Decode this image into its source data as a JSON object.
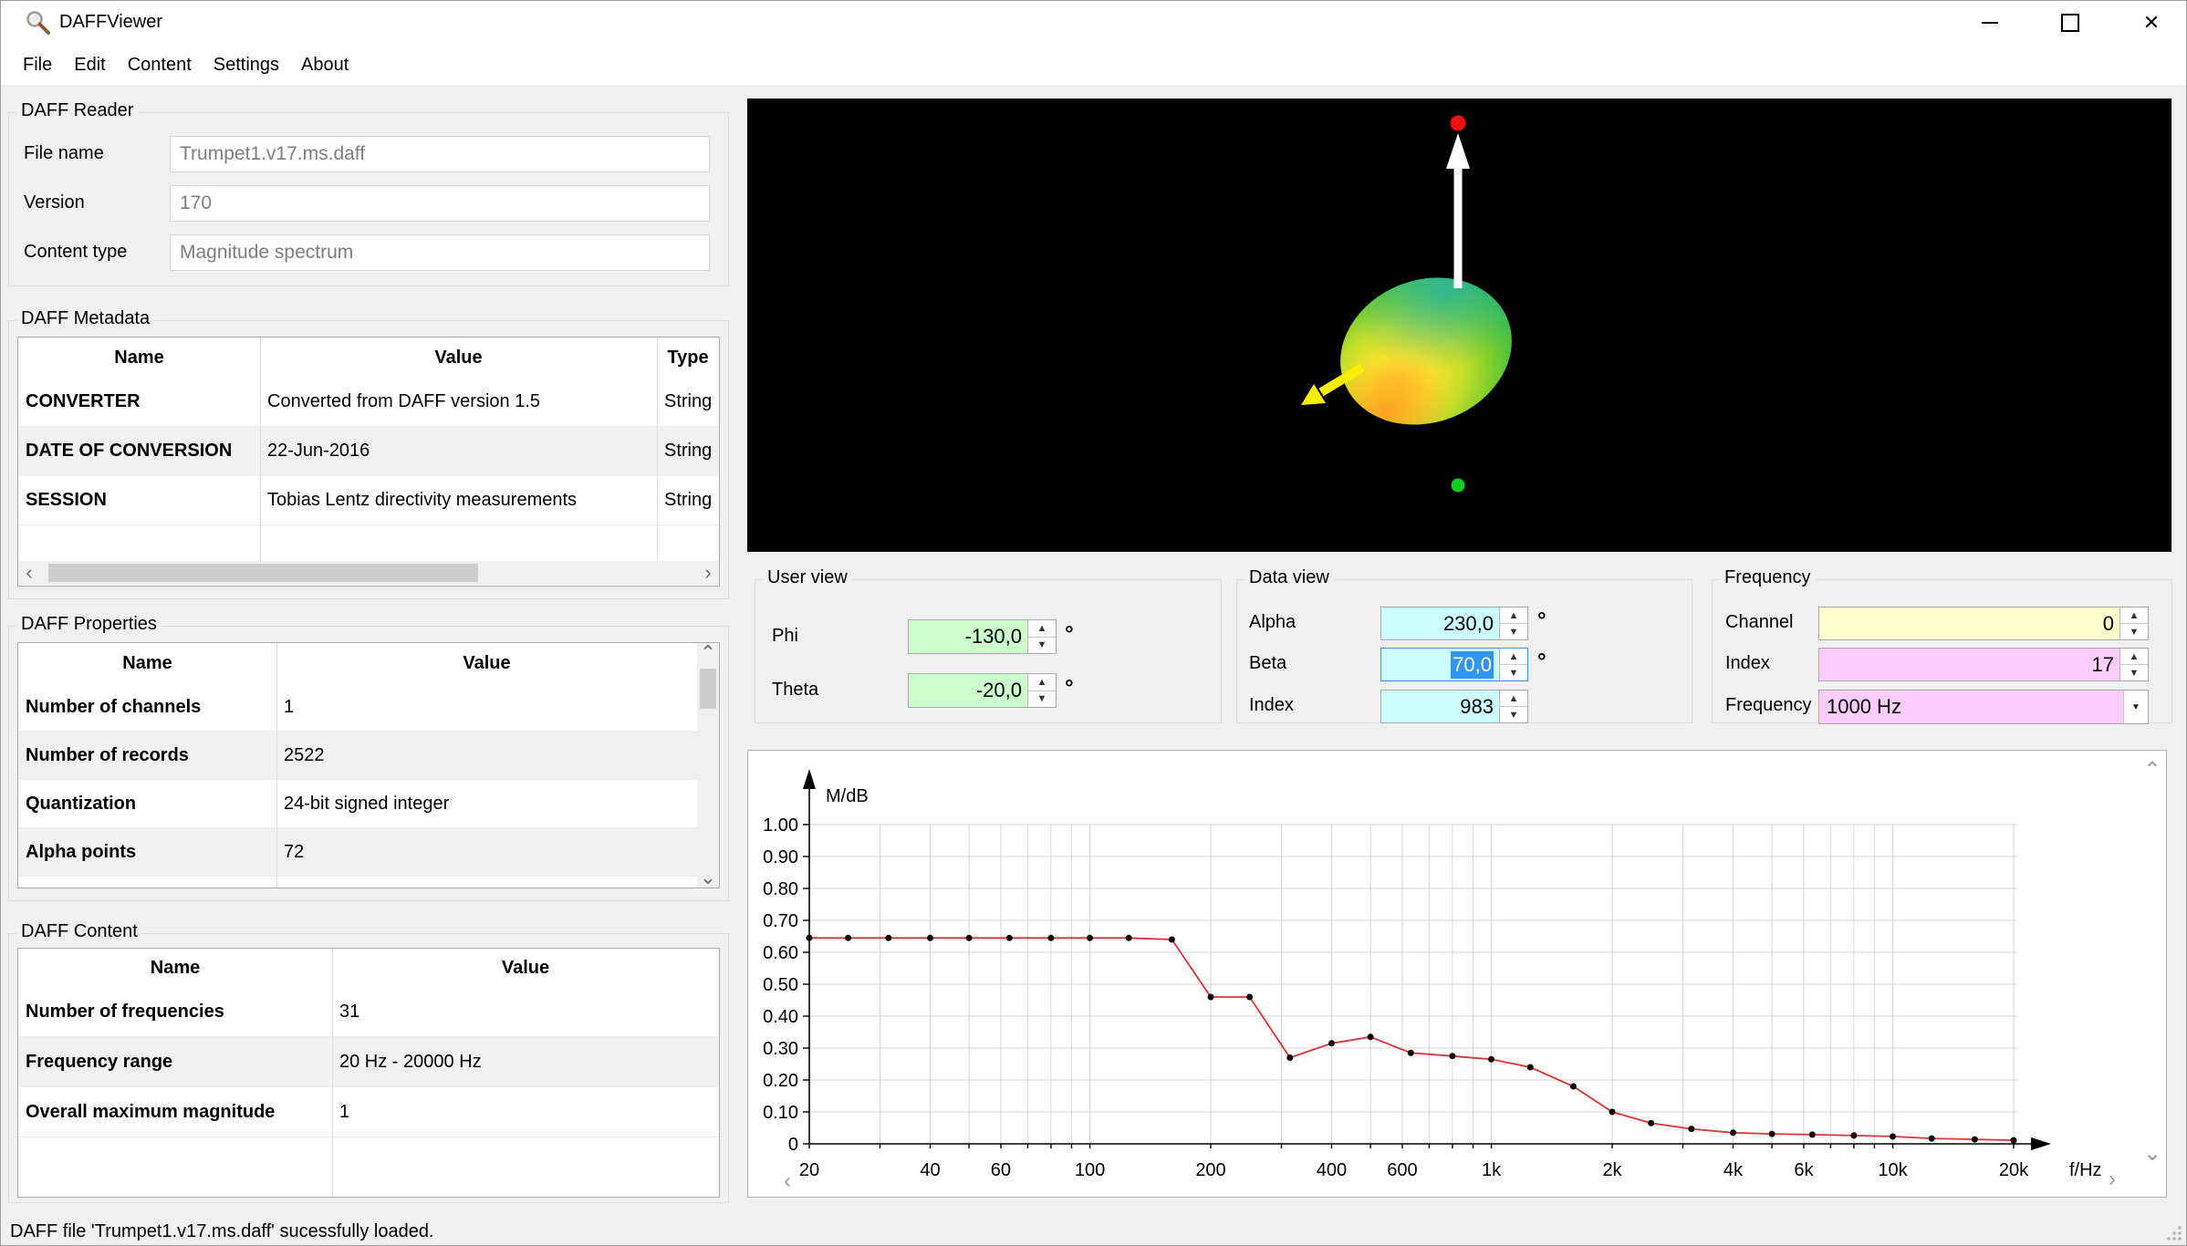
{
  "window": {
    "title": "DAFFViewer",
    "status": "DAFF file 'Trumpet1.v17.ms.daff' sucessfully loaded."
  },
  "menu": {
    "items": [
      "File",
      "Edit",
      "Content",
      "Settings",
      "About"
    ]
  },
  "reader": {
    "title": "DAFF Reader",
    "fields": [
      {
        "label": "File name",
        "value": "Trumpet1.v17.ms.daff"
      },
      {
        "label": "Version",
        "value": "170"
      },
      {
        "label": "Content type",
        "value": "Magnitude spectrum"
      }
    ]
  },
  "metadata": {
    "title": "DAFF Metadata",
    "columns": [
      "Name",
      "Value",
      "Type"
    ],
    "rows": [
      [
        "CONVERTER",
        "Converted from DAFF version 1.5",
        "String"
      ],
      [
        "DATE OF CONVERSION",
        "22-Jun-2016",
        "String"
      ],
      [
        "SESSION",
        "Tobias Lentz directivity measurements",
        "String"
      ]
    ]
  },
  "properties": {
    "title": "DAFF Properties",
    "columns": [
      "Name",
      "Value"
    ],
    "rows": [
      [
        "Number of channels",
        "1"
      ],
      [
        "Number of records",
        "2522"
      ],
      [
        "Quantization",
        "24-bit signed integer"
      ],
      [
        "Alpha points",
        "72"
      ]
    ]
  },
  "content": {
    "title": "DAFF Content",
    "columns": [
      "Name",
      "Value"
    ],
    "rows": [
      [
        "Number of frequencies",
        "31"
      ],
      [
        "Frequency range",
        "20 Hz - 20000 Hz"
      ],
      [
        "Overall maximum magnitude",
        "1"
      ]
    ]
  },
  "user_view": {
    "title": "User view",
    "phi_label": "Phi",
    "phi_value": "-130,0",
    "theta_label": "Theta",
    "theta_value": "-20,0",
    "unit": "°"
  },
  "data_view": {
    "title": "Data view",
    "alpha_label": "Alpha",
    "alpha_value": "230,0",
    "beta_label": "Beta",
    "beta_value": "70,0",
    "index_label": "Index",
    "index_value": "983",
    "unit": "°"
  },
  "frequency": {
    "title": "Frequency",
    "channel_label": "Channel",
    "channel_value": "0",
    "index_label": "Index",
    "index_value": "17",
    "frequency_label": "Frequency",
    "frequency_value": "1000 Hz"
  },
  "colors": {
    "window_bg": "#f0f0f0",
    "titlebar_bg": "#ffffff",
    "viewport_bg": "#000000",
    "user_field_bg": "#ccffcc",
    "data_field_bg": "#ccffff",
    "channel_field_bg": "#ffffcc",
    "freq_field_bg": "#ffccff",
    "selection_bg": "#3296f0",
    "selection_text": "#ffffff",
    "series_line": "#dd3333"
  },
  "chart_data": {
    "type": "line",
    "title": "",
    "ylabel": "M/dB",
    "xlabel": "f/Hz",
    "x_scale": "log",
    "xlim": [
      20,
      20000
    ],
    "ylim": [
      0,
      1.0
    ],
    "grid": true,
    "legend": false,
    "series": [
      {
        "name": "magnitude spectrum",
        "color": "#dd3333",
        "x": [
          20,
          25,
          31.5,
          40,
          50,
          63,
          80,
          100,
          125,
          160,
          200,
          250,
          315,
          400,
          500,
          630,
          800,
          1000,
          1250,
          1600,
          2000,
          2500,
          3150,
          4000,
          5000,
          6300,
          8000,
          10000,
          12500,
          16000,
          20000
        ],
        "y": [
          0.645,
          0.645,
          0.645,
          0.645,
          0.645,
          0.645,
          0.645,
          0.645,
          0.645,
          0.64,
          0.46,
          0.46,
          0.27,
          0.315,
          0.335,
          0.285,
          0.275,
          0.265,
          0.24,
          0.18,
          0.1,
          0.065,
          0.047,
          0.035,
          0.031,
          0.029,
          0.026,
          0.023,
          0.017,
          0.014,
          0.011
        ]
      }
    ],
    "x_ticks": [
      {
        "v": 20,
        "label": "20"
      },
      {
        "v": 40,
        "label": "40"
      },
      {
        "v": 60,
        "label": "60"
      },
      {
        "v": 100,
        "label": "100"
      },
      {
        "v": 200,
        "label": "200"
      },
      {
        "v": 400,
        "label": "400"
      },
      {
        "v": 600,
        "label": "600"
      },
      {
        "v": 1000,
        "label": "1k"
      },
      {
        "v": 2000,
        "label": "2k"
      },
      {
        "v": 4000,
        "label": "4k"
      },
      {
        "v": 6000,
        "label": "6k"
      },
      {
        "v": 10000,
        "label": "10k"
      },
      {
        "v": 20000,
        "label": "20k"
      }
    ],
    "x_gridlines": [
      30,
      40,
      50,
      60,
      70,
      80,
      90,
      100,
      200,
      300,
      400,
      500,
      600,
      700,
      800,
      900,
      1000,
      2000,
      3000,
      4000,
      5000,
      6000,
      7000,
      8000,
      9000,
      10000,
      20000
    ],
    "y_ticks": [
      {
        "v": 0,
        "label": "0"
      },
      {
        "v": 0.1,
        "label": "0.10"
      },
      {
        "v": 0.2,
        "label": "0.20"
      },
      {
        "v": 0.3,
        "label": "0.30"
      },
      {
        "v": 0.4,
        "label": "0.40"
      },
      {
        "v": 0.5,
        "label": "0.50"
      },
      {
        "v": 0.6,
        "label": "0.60"
      },
      {
        "v": 0.7,
        "label": "0.70"
      },
      {
        "v": 0.8,
        "label": "0.80"
      },
      {
        "v": 0.9,
        "label": "0.90"
      },
      {
        "v": 1.0,
        "label": "1.00"
      }
    ]
  }
}
